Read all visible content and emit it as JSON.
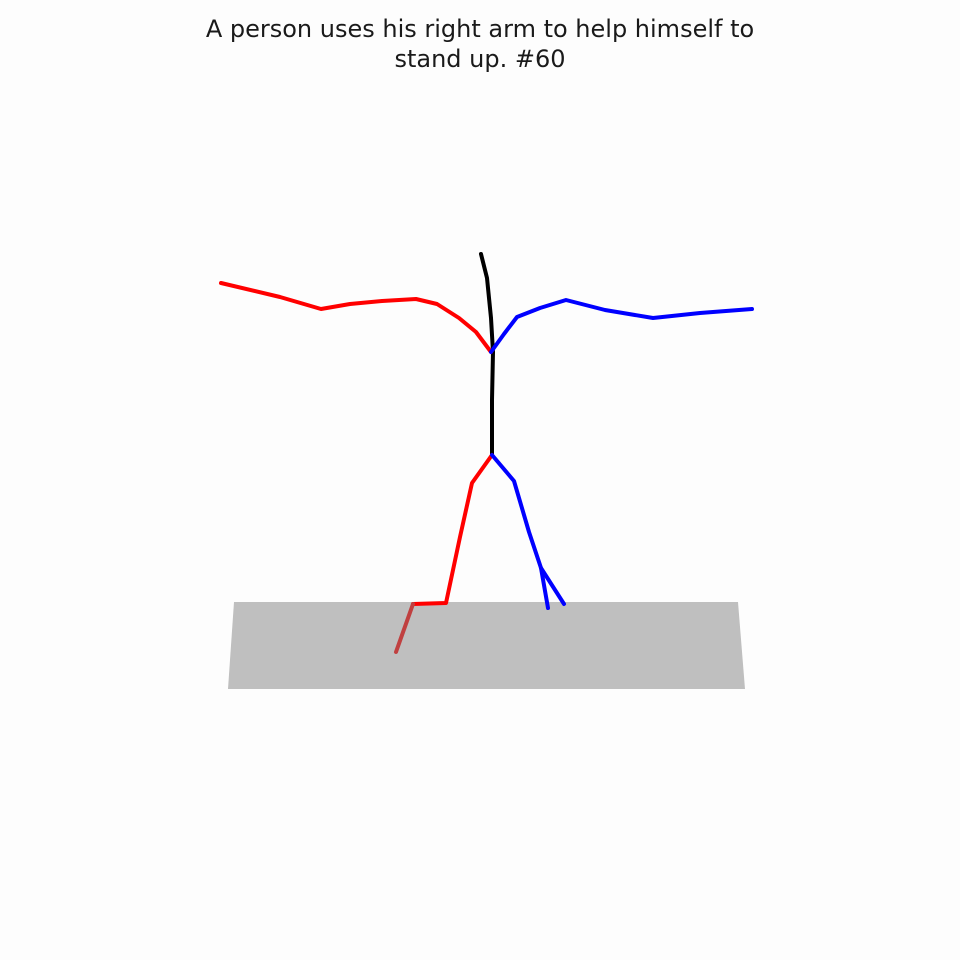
{
  "figure": {
    "caption_line1": "A person uses his right arm to help himself to",
    "caption_line2": "stand up. #60"
  },
  "colors": {
    "background": "#fdfdfd",
    "floor": "#bfbfbf",
    "spine": "#000000",
    "right_limbs": "#ff0000",
    "left_limbs": "#0000ff",
    "right_foot": "#c04040",
    "title_text": "#1a1a1a"
  }
}
